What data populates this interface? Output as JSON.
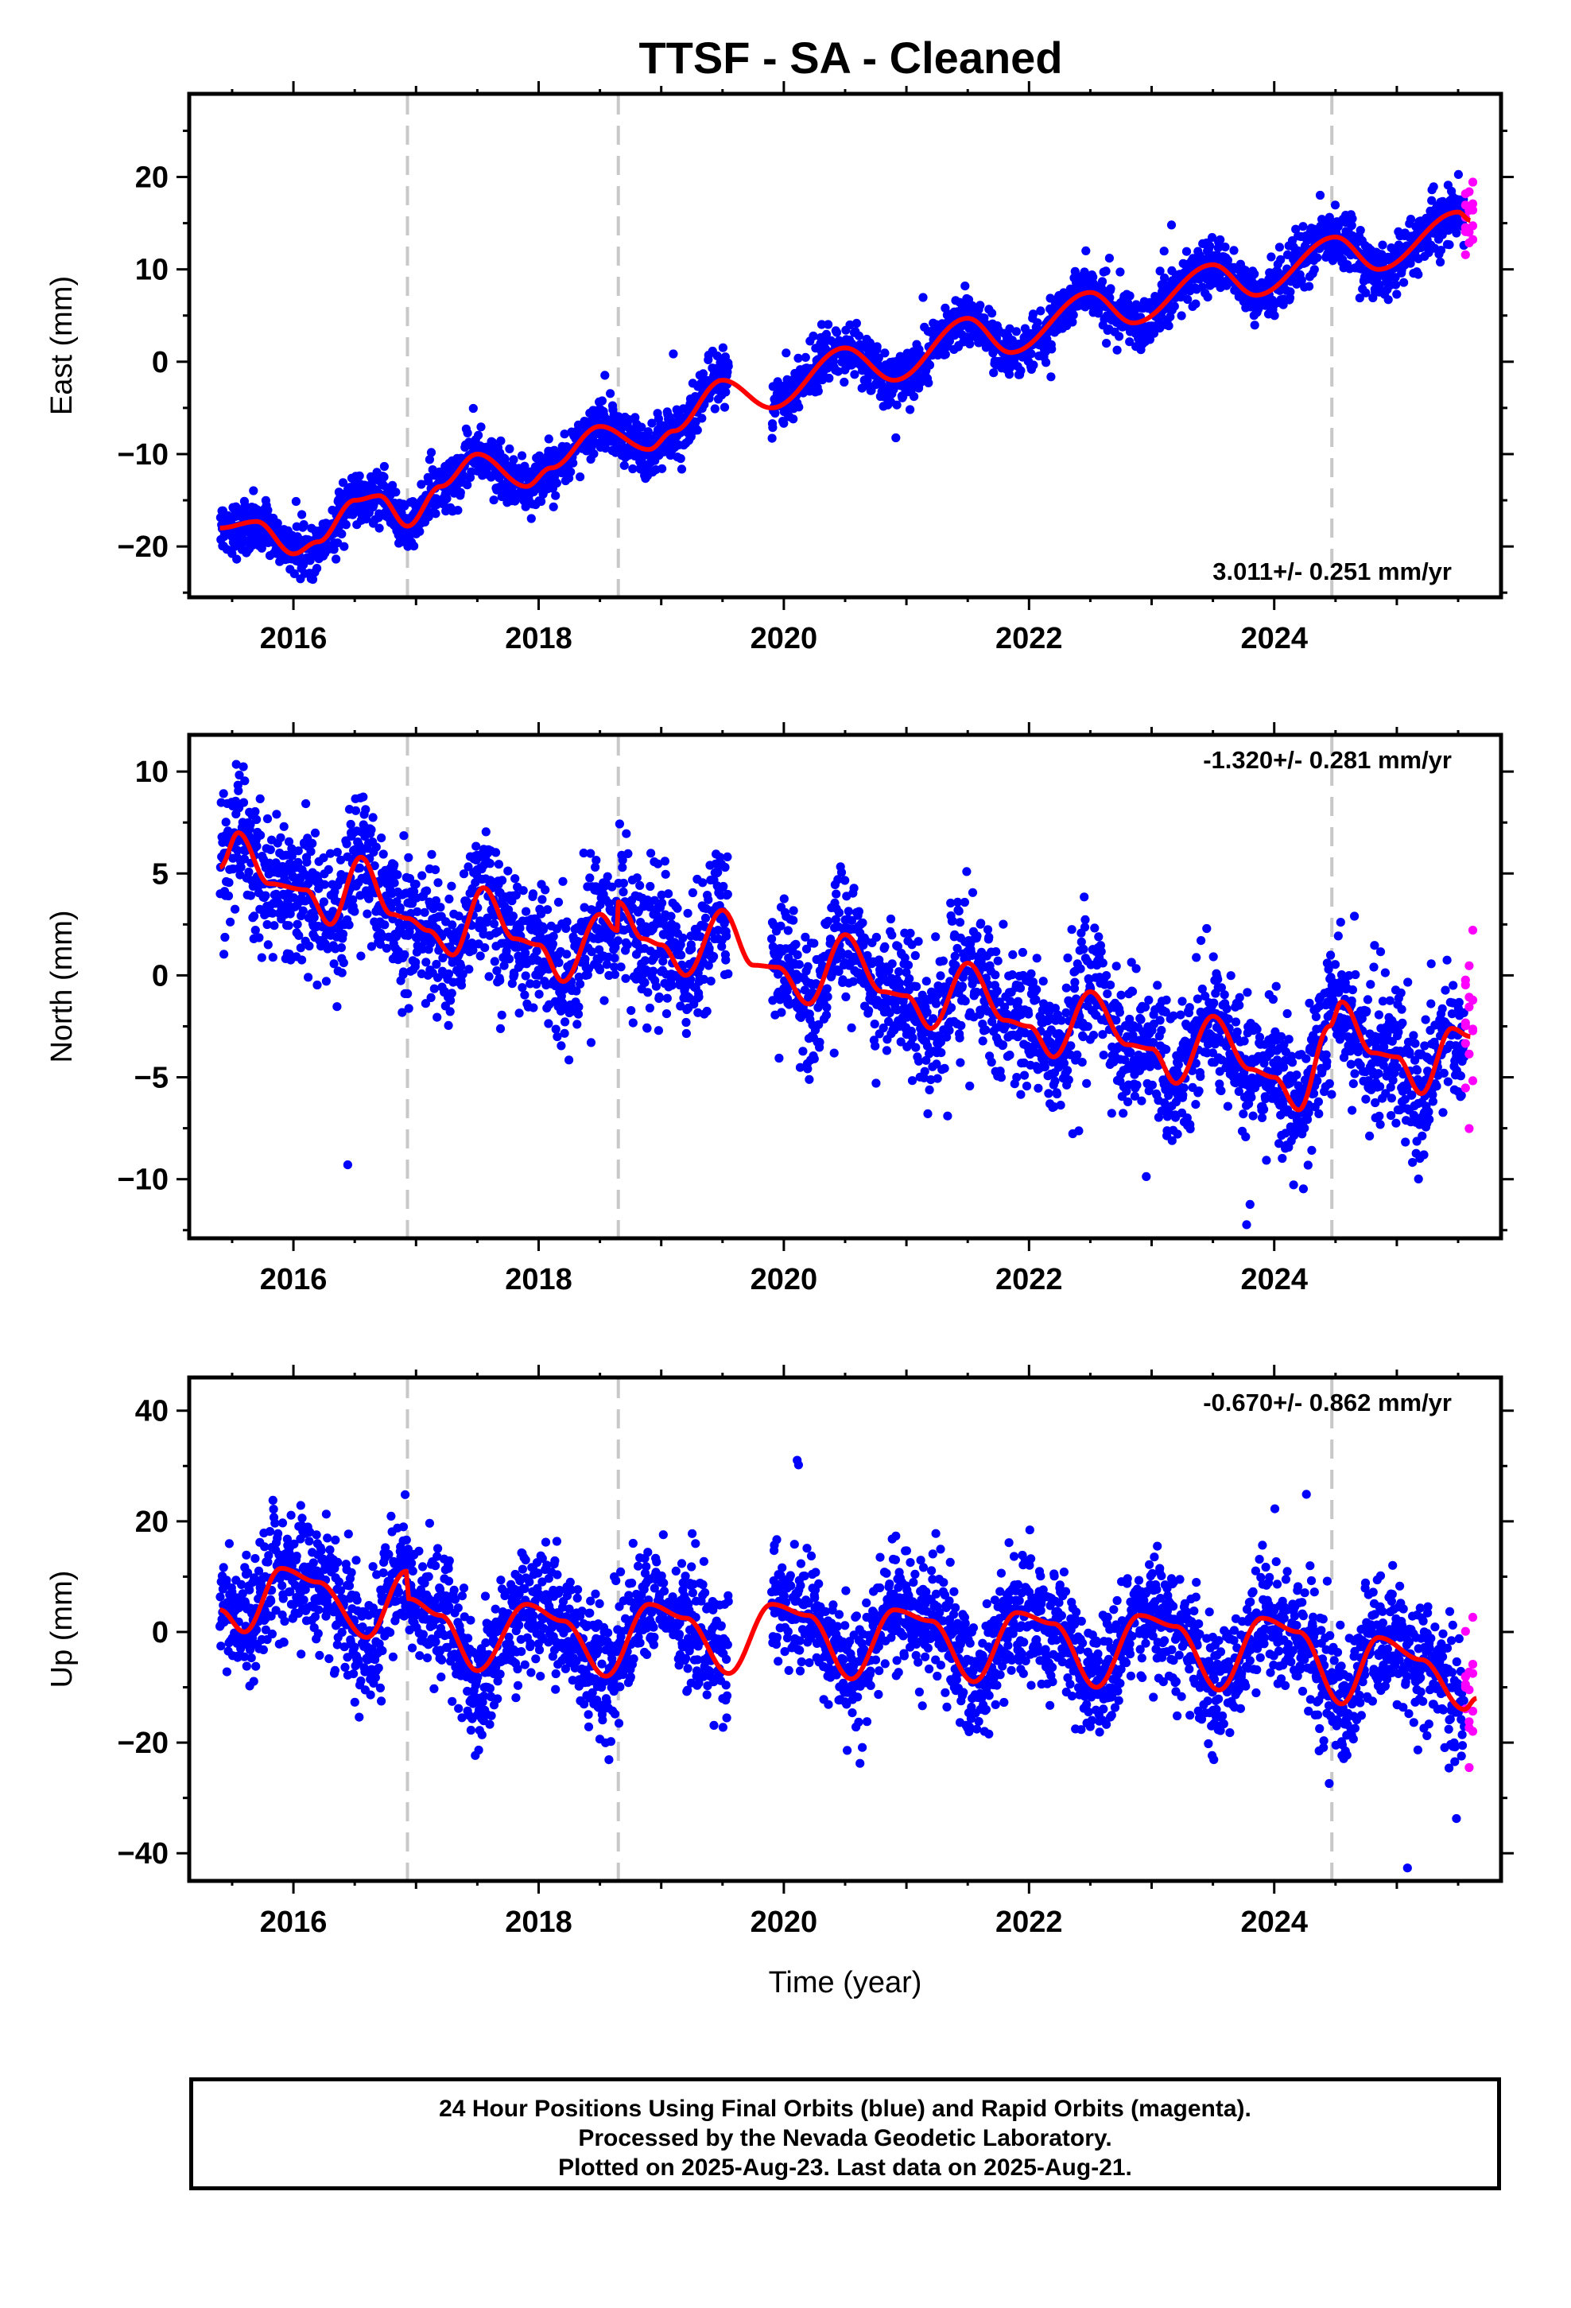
{
  "title": "TTSF  - SA - Cleaned",
  "chart_data": [
    {
      "type": "scatter",
      "ylabel": "East (mm)",
      "xlabel": "",
      "rate_label": "3.011+/- 0.251 mm/yr",
      "rate_position": "bottom-right",
      "xlim": [
        2015.15,
        2025.85
      ],
      "ylim": [
        -25.5,
        29
      ],
      "yticks": [
        -20,
        -10,
        0,
        10,
        20
      ],
      "xticks": [
        2016,
        2018,
        2020,
        2022,
        2024
      ],
      "xtick_labels": [
        "2016",
        "2018",
        "2020",
        "2022",
        "2024"
      ],
      "equipment_changes": [
        2016.93,
        2018.65,
        2024.47
      ],
      "series": [
        {
          "name": "Final Orbits (blue)",
          "color": "#0000ff",
          "x_range": [
            2015.4,
            2025.55
          ],
          "gaps": [
            [
              2019.55,
              2019.9
            ]
          ],
          "scatter": 1.4
        },
        {
          "name": "Rapid Orbits (magenta)",
          "color": "#ff00ff",
          "x_range": [
            2025.55,
            2025.64
          ],
          "scatter": 2.4,
          "count": 16
        }
      ],
      "model": {
        "color": "#ff0000",
        "control_points": [
          [
            2015.4,
            -18
          ],
          [
            2015.7,
            -17.3
          ],
          [
            2016,
            -20.8
          ],
          [
            2016.2,
            -19.5
          ],
          [
            2016.5,
            -15
          ],
          [
            2016.7,
            -14.5
          ],
          [
            2016.93,
            -17.8
          ],
          [
            2017.2,
            -13.5
          ],
          [
            2017.5,
            -10
          ],
          [
            2017.9,
            -13.5
          ],
          [
            2018.1,
            -11.5
          ],
          [
            2018.5,
            -7
          ],
          [
            2018.9,
            -9.5
          ],
          [
            2019.1,
            -7.5
          ],
          [
            2019.5,
            -2
          ],
          [
            2019.9,
            -5
          ],
          [
            2020.5,
            1.5
          ],
          [
            2020.9,
            -2
          ],
          [
            2021.5,
            4.7
          ],
          [
            2021.85,
            1
          ],
          [
            2022.5,
            7.5
          ],
          [
            2022.85,
            4.2
          ],
          [
            2023.5,
            10.5
          ],
          [
            2023.85,
            7.2
          ],
          [
            2024.5,
            13.5
          ],
          [
            2024.85,
            10
          ],
          [
            2025.5,
            16.2
          ],
          [
            2025.6,
            15.3
          ]
        ]
      }
    },
    {
      "type": "scatter",
      "ylabel": "North (mm)",
      "xlabel": "",
      "rate_label": "-1.320+/- 0.281 mm/yr",
      "rate_position": "top-right",
      "xlim": [
        2015.15,
        2025.85
      ],
      "ylim": [
        -12.9,
        11.8
      ],
      "yticks": [
        -10,
        -5,
        0,
        5,
        10
      ],
      "xticks": [
        2016,
        2018,
        2020,
        2022,
        2024
      ],
      "xtick_labels": [
        "2016",
        "2018",
        "2020",
        "2022",
        "2024"
      ],
      "equipment_changes": [
        2016.93,
        2018.65,
        2024.47
      ],
      "series": [
        {
          "name": "Final Orbits (blue)",
          "color": "#0000ff",
          "x_range": [
            2015.4,
            2025.55
          ],
          "gaps": [
            [
              2019.55,
              2019.9
            ]
          ],
          "scatter": 1.6
        },
        {
          "name": "Rapid Orbits (magenta)",
          "color": "#ff00ff",
          "x_range": [
            2025.55,
            2025.64
          ],
          "scatter": 2.2,
          "count": 16
        }
      ],
      "model": {
        "color": "#ff0000",
        "control_points": [
          [
            2015.4,
            5.3
          ],
          [
            2015.55,
            7
          ],
          [
            2015.8,
            4.5
          ],
          [
            2016.1,
            4.2
          ],
          [
            2016.3,
            2.5
          ],
          [
            2016.55,
            5.8
          ],
          [
            2016.8,
            3
          ],
          [
            2016.93,
            2.8
          ],
          [
            2017.1,
            2.2
          ],
          [
            2017.3,
            1
          ],
          [
            2017.55,
            4.3
          ],
          [
            2017.8,
            1.8
          ],
          [
            2018.0,
            1.5
          ],
          [
            2018.2,
            -0.3
          ],
          [
            2018.5,
            3
          ],
          [
            2018.64,
            2.2
          ],
          [
            2018.65,
            3.6
          ],
          [
            2018.85,
            1.8
          ],
          [
            2019.0,
            1.5
          ],
          [
            2019.2,
            0
          ],
          [
            2019.5,
            3.2
          ],
          [
            2019.75,
            0.5
          ],
          [
            2019.95,
            0.4
          ],
          [
            2020.2,
            -1.4
          ],
          [
            2020.5,
            2
          ],
          [
            2020.8,
            -0.8
          ],
          [
            2021.0,
            -1
          ],
          [
            2021.2,
            -2.6
          ],
          [
            2021.5,
            0.6
          ],
          [
            2021.8,
            -2.2
          ],
          [
            2022.0,
            -2.5
          ],
          [
            2022.2,
            -4
          ],
          [
            2022.5,
            -0.8
          ],
          [
            2022.8,
            -3.4
          ],
          [
            2023.0,
            -3.6
          ],
          [
            2023.2,
            -5.3
          ],
          [
            2023.5,
            -2
          ],
          [
            2023.8,
            -4.6
          ],
          [
            2024.0,
            -5
          ],
          [
            2024.2,
            -6.6
          ],
          [
            2024.45,
            -2.5
          ],
          [
            2024.55,
            -1.3
          ],
          [
            2024.8,
            -3.8
          ],
          [
            2025.0,
            -4
          ],
          [
            2025.2,
            -5.8
          ],
          [
            2025.45,
            -2.6
          ],
          [
            2025.6,
            -3
          ]
        ]
      }
    },
    {
      "type": "scatter",
      "ylabel": "Up (mm)",
      "xlabel": "Time (year)",
      "rate_label": "-0.670+/- 0.862 mm/yr",
      "rate_position": "top-right",
      "xlim": [
        2015.15,
        2025.85
      ],
      "ylim": [
        -45,
        46
      ],
      "yticks": [
        -40,
        -20,
        0,
        20,
        40
      ],
      "xticks": [
        2016,
        2018,
        2020,
        2022,
        2024
      ],
      "xtick_labels": [
        "2016",
        "2018",
        "2020",
        "2022",
        "2024"
      ],
      "equipment_changes": [
        2016.93,
        2018.65,
        2024.47
      ],
      "series": [
        {
          "name": "Final Orbits (blue)",
          "color": "#0000ff",
          "x_range": [
            2015.4,
            2025.55
          ],
          "gaps": [
            [
              2019.55,
              2019.9
            ]
          ],
          "scatter": 5.5
        },
        {
          "name": "Rapid Orbits (magenta)",
          "color": "#ff00ff",
          "x_range": [
            2025.55,
            2025.64
          ],
          "scatter": 8,
          "count": 16
        }
      ],
      "model": {
        "color": "#ff0000",
        "control_points": [
          [
            2015.4,
            4
          ],
          [
            2015.6,
            0
          ],
          [
            2015.9,
            11.5
          ],
          [
            2016.2,
            9
          ],
          [
            2016.6,
            -1
          ],
          [
            2016.92,
            11
          ],
          [
            2016.94,
            6
          ],
          [
            2017.2,
            3
          ],
          [
            2017.5,
            -7
          ],
          [
            2017.9,
            5
          ],
          [
            2018.2,
            2
          ],
          [
            2018.55,
            -8
          ],
          [
            2018.9,
            5
          ],
          [
            2019.2,
            2.5
          ],
          [
            2019.55,
            -7.5
          ],
          [
            2019.9,
            5
          ],
          [
            2020.2,
            3
          ],
          [
            2020.55,
            -8.5
          ],
          [
            2020.9,
            4
          ],
          [
            2021.2,
            2
          ],
          [
            2021.55,
            -9
          ],
          [
            2021.9,
            3.5
          ],
          [
            2022.2,
            1.5
          ],
          [
            2022.55,
            -10
          ],
          [
            2022.9,
            3
          ],
          [
            2023.2,
            1
          ],
          [
            2023.55,
            -10.5
          ],
          [
            2023.9,
            2.5
          ],
          [
            2024.2,
            0
          ],
          [
            2024.55,
            -13
          ],
          [
            2024.85,
            -1
          ],
          [
            2025.2,
            -5
          ],
          [
            2025.55,
            -14
          ],
          [
            2025.65,
            -12
          ]
        ]
      }
    }
  ],
  "footer": {
    "line1": "24 Hour Positions Using Final Orbits (blue) and Rapid Orbits (magenta).",
    "line2": "Processed by the Nevada Geodetic Laboratory.",
    "line3": "Plotted on 2025-Aug-23. Last data on 2025-Aug-21."
  }
}
